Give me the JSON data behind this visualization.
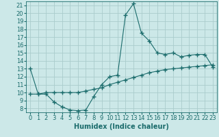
{
  "xlabel": "Humidex (Indice chaleur)",
  "background_color": "#cce8e8",
  "grid_color": "#aacccc",
  "line_color": "#1a6b6b",
  "xlim": [
    -0.5,
    23.5
  ],
  "ylim": [
    7.5,
    21.5
  ],
  "yticks": [
    8,
    9,
    10,
    11,
    12,
    13,
    14,
    15,
    16,
    17,
    18,
    19,
    20,
    21
  ],
  "xticks": [
    0,
    1,
    2,
    3,
    4,
    5,
    6,
    7,
    8,
    9,
    10,
    11,
    12,
    13,
    14,
    15,
    16,
    17,
    18,
    19,
    20,
    21,
    22,
    23
  ],
  "series1_x": [
    0,
    1,
    2,
    3,
    4,
    5,
    6,
    7,
    8,
    9,
    10,
    11,
    12,
    13,
    14,
    15,
    16,
    17,
    18,
    19,
    20,
    21,
    22,
    23
  ],
  "series1_y": [
    13.0,
    9.8,
    9.8,
    8.8,
    8.2,
    7.8,
    7.7,
    7.8,
    9.5,
    11.0,
    12.0,
    12.2,
    19.8,
    21.2,
    17.5,
    16.5,
    15.0,
    14.8,
    15.0,
    14.5,
    14.7,
    14.8,
    14.8,
    13.2
  ],
  "series2_x": [
    0,
    1,
    2,
    3,
    4,
    5,
    6,
    7,
    8,
    9,
    10,
    11,
    12,
    13,
    14,
    15,
    16,
    17,
    18,
    19,
    20,
    21,
    22,
    23
  ],
  "series2_y": [
    9.8,
    9.8,
    10.0,
    10.0,
    10.0,
    10.0,
    10.0,
    10.2,
    10.4,
    10.6,
    11.0,
    11.3,
    11.6,
    11.9,
    12.2,
    12.5,
    12.7,
    12.9,
    13.0,
    13.1,
    13.2,
    13.3,
    13.4,
    13.5
  ],
  "marker": "+",
  "markersize": 4,
  "linewidth": 0.8,
  "xlabel_fontsize": 7,
  "tick_fontsize": 6
}
